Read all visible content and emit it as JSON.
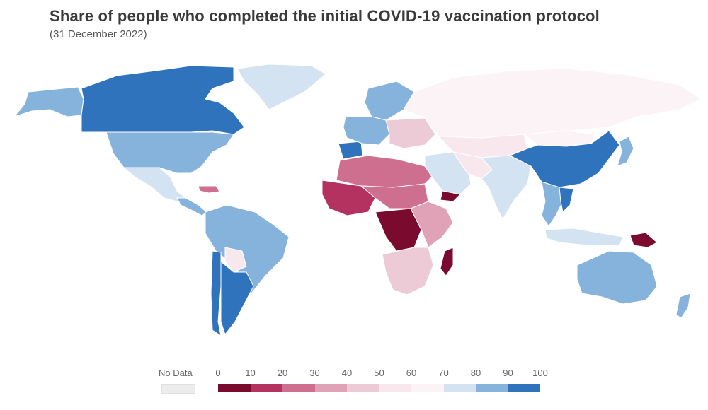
{
  "header": {
    "title": "Share of people who completed the initial COVID-19 vaccination protocol",
    "subtitle": "(31 December 2022)"
  },
  "legend": {
    "no_data_label": "No Data",
    "no_data_color": "#ececec",
    "ticks": [
      "0",
      "10",
      "20",
      "30",
      "40",
      "50",
      "60",
      "70",
      "80",
      "90",
      "100"
    ],
    "colors": [
      "#7a0b2e",
      "#b3325f",
      "#cf6f8f",
      "#dfa2b6",
      "#eccad6",
      "#f8e8ee",
      "#fbf3f6",
      "#d4e3f1",
      "#86b3dc",
      "#2f73bd"
    ]
  },
  "regions": [
    {
      "name": "Greenland",
      "band": 7
    },
    {
      "name": "Canada",
      "band": 9
    },
    {
      "name": "Alaska",
      "band": 8
    },
    {
      "name": "United States",
      "band": 8
    },
    {
      "name": "Mexico",
      "band": 7
    },
    {
      "name": "Central America",
      "band": 8
    },
    {
      "name": "Caribbean",
      "band": 2
    },
    {
      "name": "South America North",
      "band": 8
    },
    {
      "name": "Chile",
      "band": 9
    },
    {
      "name": "Argentina",
      "band": 9
    },
    {
      "name": "Paraguay",
      "band": 5
    },
    {
      "name": "Western Europe",
      "band": 8
    },
    {
      "name": "Iberia",
      "band": 9
    },
    {
      "name": "Scandinavia",
      "band": 8
    },
    {
      "name": "Eastern Europe",
      "band": 4
    },
    {
      "name": "Russia",
      "band": 6
    },
    {
      "name": "North Africa",
      "band": 2
    },
    {
      "name": "West Africa",
      "band": 1
    },
    {
      "name": "Sahel",
      "band": 2
    },
    {
      "name": "Central Africa",
      "band": 0
    },
    {
      "name": "East Africa",
      "band": 3
    },
    {
      "name": "Southern Africa",
      "band": 4
    },
    {
      "name": "Madagascar",
      "band": 0
    },
    {
      "name": "Middle East",
      "band": 7
    },
    {
      "name": "Yemen",
      "band": 0
    },
    {
      "name": "Iran",
      "band": 5
    },
    {
      "name": "Central Asia",
      "band": 5
    },
    {
      "name": "India",
      "band": 7
    },
    {
      "name": "China",
      "band": 9
    },
    {
      "name": "Mongolia",
      "band": 6
    },
    {
      "name": "Japan",
      "band": 8
    },
    {
      "name": "Southeast Asia",
      "band": 8
    },
    {
      "name": "Vietnam",
      "band": 9
    },
    {
      "name": "Indonesia",
      "band": 7
    },
    {
      "name": "Papua New Guinea",
      "band": 0
    },
    {
      "name": "Australia",
      "band": 8
    },
    {
      "name": "New Zealand",
      "band": 8
    }
  ]
}
